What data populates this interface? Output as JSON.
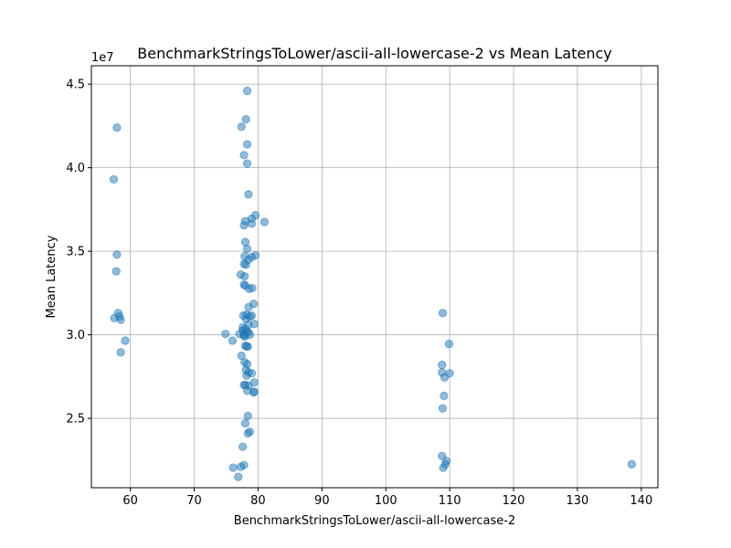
{
  "chart_data": {
    "type": "scatter",
    "title": "BenchmarkStringsToLower/ascii-all-lowercase-2 vs Mean Latency",
    "xlabel": "BenchmarkStringsToLower/ascii-all-lowercase-2",
    "ylabel": "Mean Latency",
    "y_offset_label": "1e7",
    "xlim": [
      53.9,
      142.6
    ],
    "ylim": [
      2.085,
      4.61
    ],
    "x_ticks": [
      60,
      70,
      80,
      90,
      100,
      110,
      120,
      130,
      140
    ],
    "x_tick_labels": [
      "60",
      "70",
      "80",
      "90",
      "100",
      "110",
      "120",
      "130",
      "140"
    ],
    "y_ticks": [
      2.5,
      3.0,
      3.5,
      4.0,
      4.5
    ],
    "y_tick_labels": [
      "2.5",
      "3.0",
      "3.5",
      "4.0",
      "4.5"
    ],
    "grid": true,
    "marker_color": "#1f77b4",
    "marker_alpha": 0.5,
    "points": [
      [
        57.9,
        4.24
      ],
      [
        57.4,
        3.93
      ],
      [
        57.9,
        3.48
      ],
      [
        57.8,
        3.38
      ],
      [
        58.1,
        3.13
      ],
      [
        58.3,
        3.11
      ],
      [
        57.5,
        3.1
      ],
      [
        58.5,
        3.09
      ],
      [
        59.2,
        2.965
      ],
      [
        58.5,
        2.895
      ],
      [
        78.3,
        4.46
      ],
      [
        78.1,
        4.29
      ],
      [
        77.4,
        4.245
      ],
      [
        78.3,
        4.14
      ],
      [
        77.8,
        4.075
      ],
      [
        78.3,
        4.025
      ],
      [
        78.5,
        3.84
      ],
      [
        79.6,
        3.715
      ],
      [
        79.0,
        3.695
      ],
      [
        78.0,
        3.68
      ],
      [
        81.0,
        3.675
      ],
      [
        79.0,
        3.665
      ],
      [
        77.8,
        3.655
      ],
      [
        78.0,
        3.555
      ],
      [
        78.3,
        3.515
      ],
      [
        79.6,
        3.475
      ],
      [
        77.9,
        3.47
      ],
      [
        79.0,
        3.465
      ],
      [
        78.5,
        3.45
      ],
      [
        77.8,
        3.425
      ],
      [
        78.1,
        3.42
      ],
      [
        77.3,
        3.36
      ],
      [
        77.9,
        3.35
      ],
      [
        77.8,
        3.3
      ],
      [
        78.0,
        3.295
      ],
      [
        79.1,
        3.28
      ],
      [
        78.6,
        3.275
      ],
      [
        79.3,
        3.185
      ],
      [
        78.5,
        3.165
      ],
      [
        78.2,
        3.12
      ],
      [
        79.0,
        3.115
      ],
      [
        77.7,
        3.115
      ],
      [
        78.7,
        3.11
      ],
      [
        78.1,
        3.095
      ],
      [
        79.4,
        3.065
      ],
      [
        78.5,
        3.06
      ],
      [
        77.6,
        3.045
      ],
      [
        78.0,
        3.035
      ],
      [
        77.6,
        3.025
      ],
      [
        78.2,
        3.02
      ],
      [
        78.5,
        3.015
      ],
      [
        77.8,
        3.005
      ],
      [
        77.1,
        3.005
      ],
      [
        78.7,
        3.0
      ],
      [
        74.9,
        3.005
      ],
      [
        77.8,
        2.995
      ],
      [
        77.9,
        2.99
      ],
      [
        76.0,
        2.965
      ],
      [
        78.0,
        2.935
      ],
      [
        78.2,
        2.93
      ],
      [
        78.4,
        2.93
      ],
      [
        77.4,
        2.875
      ],
      [
        77.9,
        2.835
      ],
      [
        78.3,
        2.825
      ],
      [
        78.1,
        2.79
      ],
      [
        78.5,
        2.775
      ],
      [
        79.0,
        2.77
      ],
      [
        78.2,
        2.755
      ],
      [
        79.4,
        2.715
      ],
      [
        77.8,
        2.7
      ],
      [
        78.0,
        2.7
      ],
      [
        78.5,
        2.695
      ],
      [
        78.3,
        2.665
      ],
      [
        79.4,
        2.66
      ],
      [
        79.3,
        2.655
      ],
      [
        78.4,
        2.515
      ],
      [
        78.0,
        2.47
      ],
      [
        78.7,
        2.42
      ],
      [
        78.4,
        2.41
      ],
      [
        77.6,
        2.33
      ],
      [
        77.8,
        2.22
      ],
      [
        77.3,
        2.21
      ],
      [
        76.1,
        2.205
      ],
      [
        76.9,
        2.15
      ],
      [
        108.9,
        3.13
      ],
      [
        109.9,
        2.945
      ],
      [
        108.8,
        2.82
      ],
      [
        108.8,
        2.775
      ],
      [
        110.0,
        2.77
      ],
      [
        109.2,
        2.745
      ],
      [
        109.1,
        2.635
      ],
      [
        108.9,
        2.56
      ],
      [
        108.8,
        2.275
      ],
      [
        109.5,
        2.245
      ],
      [
        109.3,
        2.225
      ],
      [
        109.0,
        2.205
      ],
      [
        138.5,
        2.225
      ]
    ]
  }
}
